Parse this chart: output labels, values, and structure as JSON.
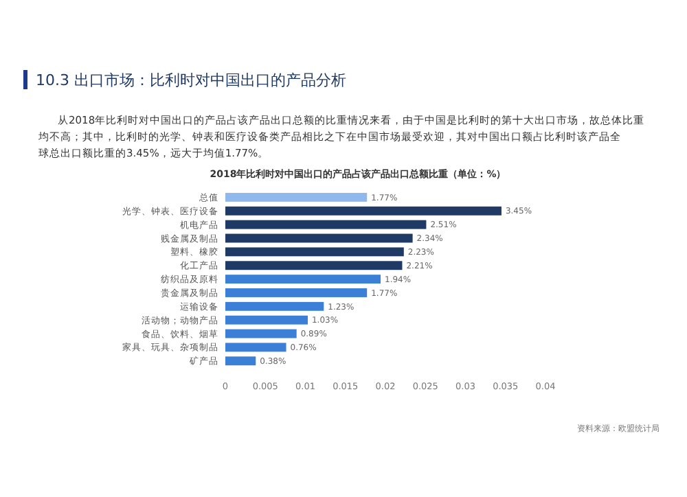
{
  "chart_data": {
    "type": "bar",
    "orientation": "horizontal",
    "title": "10.3 出口市场：比利时对中国出口的产品分析",
    "subtitle": "从2018年比利时对中国出口的产品占该产品出口总额的比重情况来看，由于中国是比利时的第十大出口市场，故总体比重均不高；其中，比利时的光学、钟表和医疗设备类产品相比之下在中国市场最受欢迎，其对中国出口额占比利时该产品全球总出口额比重的3.45%，远大于均值1.77%。",
    "xlabel": "2018年比利时对中国出口的产品占该产品出口总额比重（单位：%）",
    "categories": [
      "总值",
      "光学、钟表、医疗设备",
      "机电产品",
      "贱金属及制品",
      "塑料、橡胶",
      "化工产品",
      "纺织品及原料",
      "贵金属及制品",
      "运输设备",
      "活动物；动物产品",
      "食品、饮料、烟草",
      "家具、玩具、杂项制品",
      "矿产品"
    ],
    "values": [
      0.0177,
      0.0345,
      0.0251,
      0.0234,
      0.0223,
      0.0221,
      0.0194,
      0.0177,
      0.0123,
      0.0103,
      0.0089,
      0.0076,
      0.0038
    ],
    "value_labels": [
      "1.77%",
      "3.45%",
      "2.51%",
      "2.34%",
      "2.23%",
      "2.21%",
      "1.94%",
      "1.77%",
      "1.23%",
      "1.03%",
      "0.89%",
      "0.76%",
      "0.38%"
    ],
    "colors": [
      "#8fb8ec",
      "#1f3a64",
      "#1f3a64",
      "#1f3a64",
      "#1f3a64",
      "#1f3a64",
      "#3b7fd6",
      "#3b7fd6",
      "#3b7fd6",
      "#3b7fd6",
      "#3b7fd6",
      "#3b7fd6",
      "#3b7fd6"
    ],
    "xlim": [
      0,
      0.04
    ],
    "xticks": [
      0,
      0.005,
      0.01,
      0.015,
      0.02,
      0.025,
      0.03,
      0.035,
      0.04
    ],
    "grid": false,
    "annotations": [
      "资料来源：欧盟统计局"
    ]
  }
}
